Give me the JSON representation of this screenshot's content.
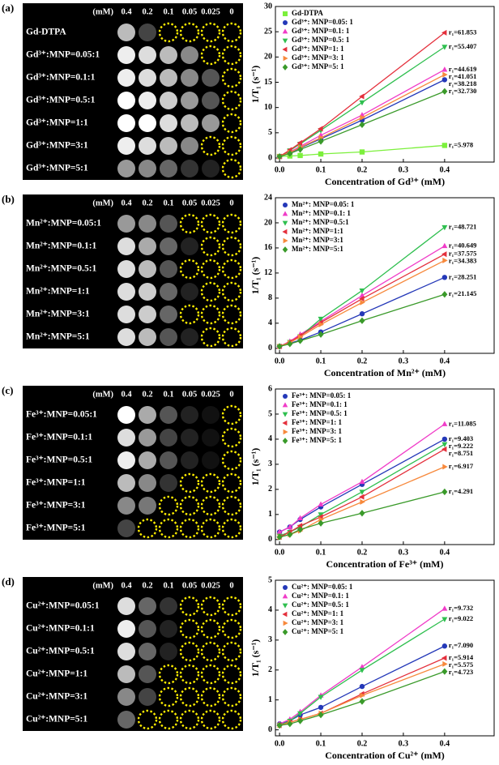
{
  "panels": [
    {
      "label": "(a)",
      "phantom": {
        "unit": "(mM)",
        "columns": [
          "0.4",
          "0.2",
          "0.1",
          "0.05",
          "0.025",
          "0"
        ],
        "rows": [
          {
            "label": "Gd-DTPA",
            "cells": [
              "#bbbbbb",
              "#444444",
              null,
              null,
              null,
              null
            ]
          },
          {
            "label": "Gd³⁺:MNP=0.05:1",
            "cells": [
              "#eeeeee",
              "#dddddd",
              "#bbbbbb",
              "#888888",
              null,
              null
            ]
          },
          {
            "label": "Gd³⁺:MNP=0.1:1",
            "cells": [
              "#eeeeee",
              "#dddddd",
              "#bbbbbb",
              "#888888",
              "#555555",
              null
            ]
          },
          {
            "label": "Gd³⁺:MNP=0.5:1",
            "cells": [
              "#ffffff",
              "#eeeeee",
              "#cccccc",
              "#999999",
              "#555555",
              null
            ]
          },
          {
            "label": "Gd³⁺:MNP=1:1",
            "cells": [
              "#ffffff",
              "#ffffff",
              "#dddddd",
              "#bbbbbb",
              "#999999",
              null
            ]
          },
          {
            "label": "Gd³⁺:MNP=3:1",
            "cells": [
              "#eeeeee",
              "#dddddd",
              "#bbbbbb",
              "#888888",
              null,
              null
            ]
          },
          {
            "label": "Gd³⁺:MNP=5:1",
            "cells": [
              "#999999",
              "#888888",
              "#666666",
              "#333333",
              "#222222",
              null
            ]
          }
        ]
      }
    },
    {
      "label": "(b)",
      "phantom": {
        "unit": "(mM)",
        "columns": [
          "0.4",
          "0.2",
          "0.1",
          "0.05",
          "0.025",
          "0"
        ],
        "rows": [
          {
            "label": "Mn²⁺:MNP=0.05:1",
            "cells": [
              "#999999",
              "#888888",
              "#555555",
              null,
              null,
              null
            ]
          },
          {
            "label": "Mn²⁺:MNP=0.1:1",
            "cells": [
              "#dddddd",
              "#aaaaaa",
              "#666666",
              "#222222",
              null,
              null
            ]
          },
          {
            "label": "Mn²⁺:MNP=0.5:1",
            "cells": [
              "#dddddd",
              "#bbbbbb",
              "#555555",
              null,
              null,
              null
            ]
          },
          {
            "label": "Mn²⁺:MNP=1:1",
            "cells": [
              "#dddddd",
              "#cccccc",
              "#666666",
              "#222222",
              null,
              null
            ]
          },
          {
            "label": "Mn²⁺:MNP=3:1",
            "cells": [
              "#dddddd",
              "#cccccc",
              "#666666",
              null,
              null,
              null
            ]
          },
          {
            "label": "Mn²⁺:MNP=5:1",
            "cells": [
              "#dddddd",
              "#bbbbbb",
              "#555555",
              "#222222",
              null,
              null
            ]
          }
        ]
      }
    },
    {
      "label": "(c)",
      "phantom": {
        "unit": "(mM)",
        "columns": [
          "0.4",
          "0.2",
          "0.1",
          "0.05",
          "0.025",
          "0"
        ],
        "rows": [
          {
            "label": "Fe³⁺:MNP=0.05:1",
            "cells": [
              "#ffffff",
              "#aaaaaa",
              "#555555",
              "#222222",
              "#111111",
              null
            ]
          },
          {
            "label": "Fe³⁺:MNP=0.1:1",
            "cells": [
              "#dddddd",
              "#999999",
              "#444444",
              "#222222",
              "#111111",
              null
            ]
          },
          {
            "label": "Fe³⁺:MNP=0.5:1",
            "cells": [
              "#eeeeee",
              "#aaaaaa",
              "#555555",
              "#222222",
              "#111111",
              null
            ]
          },
          {
            "label": "Fe³⁺:MNP=1:1",
            "cells": [
              "#bbbbbb",
              "#888888",
              "#333333",
              null,
              null,
              null
            ]
          },
          {
            "label": "Fe³⁺:MNP=3:1",
            "cells": [
              "#888888",
              "#777777",
              null,
              null,
              null,
              null
            ]
          },
          {
            "label": "Fe³⁺:MNP=5:1",
            "cells": [
              "#444444",
              null,
              null,
              null,
              null,
              null
            ]
          }
        ]
      }
    },
    {
      "label": "(d)",
      "phantom": {
        "unit": "(mM)",
        "columns": [
          "0.4",
          "0.2",
          "0.1",
          "0.05",
          "0.025",
          "0"
        ],
        "rows": [
          {
            "label": "Cu²⁺:MNP=0.05:1",
            "cells": [
              "#dddddd",
              "#666666",
              "#333333",
              null,
              null,
              null
            ]
          },
          {
            "label": "Cu²⁺:MNP=0.1:1",
            "cells": [
              "#eeeeee",
              "#555555",
              "#222222",
              null,
              null,
              null
            ]
          },
          {
            "label": "Cu²⁺:MNP=0.5:1",
            "cells": [
              "#dddddd",
              "#666666",
              "#222222",
              null,
              null,
              null
            ]
          },
          {
            "label": "Cu²⁺:MNP=1:1",
            "cells": [
              "#bbbbbb",
              "#555555",
              null,
              null,
              null,
              null
            ]
          },
          {
            "label": "Cu²⁺:MNP=3:1",
            "cells": [
              "#888888",
              "#444444",
              null,
              null,
              null,
              null
            ]
          },
          {
            "label": "Cu²⁺:MNP=5:1",
            "cells": [
              "#666666",
              null,
              null,
              null,
              null,
              null
            ]
          }
        ]
      }
    }
  ],
  "chart_data": [
    {
      "type": "line",
      "x_label": "Concentration of Gd³⁺ (mM)",
      "y_label": "1/T₁ (s⁻¹)",
      "x": [
        0,
        0.025,
        0.05,
        0.1,
        0.2,
        0.4
      ],
      "xlim": [
        -0.01,
        0.52
      ],
      "ylim": [
        -0.8,
        30
      ],
      "xticks": [
        {
          "value": 0,
          "label": "0.0"
        },
        0.1,
        0.2,
        0.3,
        0.4
      ],
      "yticks": [
        0,
        5,
        10,
        15,
        20,
        25,
        30
      ],
      "grid": false,
      "legend": "upper left",
      "series": [
        {
          "name": "Gd-DTPA",
          "color": "#7cf03c",
          "marker": "square",
          "values": [
            0.3,
            0.4,
            0.5,
            0.8,
            1.2,
            2.5
          ],
          "annotation": "r₁=5.978"
        },
        {
          "name": "Gd³⁺: MNP=0.05: 1",
          "color": "#2438b8",
          "marker": "circle",
          "values": [
            0.3,
            1.0,
            2.0,
            3.8,
            7.5,
            15.5
          ],
          "annotation": "r₁=38.218"
        },
        {
          "name": "Gd³⁺: MNP=0.1: 1",
          "color": "#f03cc8",
          "marker": "triangle-up",
          "values": [
            0.3,
            1.2,
            2.3,
            4.5,
            8.5,
            17.5
          ],
          "annotation": "r₁=44.619"
        },
        {
          "name": "Gd³⁺: MNP=0.5: 1",
          "color": "#2fbf4f",
          "marker": "triangle-down",
          "values": [
            0.3,
            1.5,
            2.8,
            5.5,
            11.0,
            22.0
          ],
          "annotation": "r₁=55.407"
        },
        {
          "name": "Gd³⁺: MNP=1: 1",
          "color": "#e4303c",
          "marker": "triangle-left",
          "values": [
            0.3,
            1.6,
            3.0,
            5.8,
            12.2,
            24.8
          ],
          "annotation": "r₁=61.853"
        },
        {
          "name": "Gd³⁺: MNP=3: 1",
          "color": "#f7893c",
          "marker": "triangle-right",
          "values": [
            0.3,
            1.1,
            2.1,
            4.0,
            8.0,
            16.5
          ],
          "annotation": "r₁=41.051"
        },
        {
          "name": "Gd³⁺: MNP=5: 1",
          "color": "#3a9a2a",
          "marker": "diamond",
          "values": [
            0.3,
            0.9,
            1.7,
            3.3,
            6.6,
            13.2
          ],
          "annotation": "r₁=32.730"
        }
      ]
    },
    {
      "type": "line",
      "x_label": "Concentration of Mn²⁺ (mM)",
      "y_label": "1/T₁ (s⁻¹)",
      "x": [
        0,
        0.025,
        0.05,
        0.1,
        0.2,
        0.4
      ],
      "xlim": [
        -0.01,
        0.52
      ],
      "ylim": [
        -0.8,
        24
      ],
      "xticks": [
        {
          "value": 0,
          "label": "0.0"
        },
        0.1,
        0.2,
        0.3,
        0.4
      ],
      "yticks": [
        0,
        4,
        8,
        12,
        16,
        20,
        24
      ],
      "grid": false,
      "legend": "upper left",
      "series": [
        {
          "name": "Mn²⁺: MNP=0.05: 1",
          "color": "#2438b8",
          "marker": "circle",
          "values": [
            0.3,
            0.8,
            1.3,
            2.6,
            5.5,
            11.3
          ],
          "annotation": "r₁=28.251"
        },
        {
          "name": "Mn²⁺: MNP=0.1: 1",
          "color": "#f03cc8",
          "marker": "triangle-up",
          "values": [
            0.3,
            1.1,
            2.2,
            4.3,
            8.4,
            16.3
          ],
          "annotation": "r₁=40.649"
        },
        {
          "name": "Mn²⁺: MNP=0.5:1",
          "color": "#2fbf4f",
          "marker": "triangle-down",
          "values": [
            0.3,
            1.0,
            1.9,
            4.7,
            9.2,
            19.3
          ],
          "annotation": "r₁=48.721"
        },
        {
          "name": "Mn²⁺: MNP=1:1",
          "color": "#e4303c",
          "marker": "triangle-left",
          "values": [
            0.3,
            1.0,
            2.0,
            4.1,
            7.9,
            15.0
          ],
          "annotation": "r₁=37.575"
        },
        {
          "name": "Mn²⁺: MNP=3:1",
          "color": "#f7893c",
          "marker": "triangle-right",
          "values": [
            0.3,
            0.9,
            1.8,
            3.8,
            7.3,
            14.0
          ],
          "annotation": "r₁=34.383"
        },
        {
          "name": "Mn²⁺: MNP=5:1",
          "color": "#3a9a2a",
          "marker": "diamond",
          "values": [
            0.3,
            0.7,
            1.2,
            2.2,
            4.4,
            8.6
          ],
          "annotation": "r₁=21.145"
        }
      ]
    },
    {
      "type": "line",
      "x_label": "Concentration of Fe³⁺ (mM)",
      "y_label": "1/T₁ (s⁻¹)",
      "x": [
        0,
        0.025,
        0.05,
        0.1,
        0.2,
        0.4
      ],
      "xlim": [
        -0.01,
        0.52
      ],
      "ylim": [
        -0.2,
        6
      ],
      "xticks": [
        {
          "value": 0,
          "label": "0.0"
        },
        0.1,
        0.2,
        0.3,
        0.4
      ],
      "yticks": [
        0,
        1,
        2,
        3,
        4,
        5,
        6
      ],
      "grid": false,
      "legend": "upper left",
      "series": [
        {
          "name": "Fe³⁺: MNP=0.05: 1",
          "color": "#2438b8",
          "marker": "circle",
          "values": [
            0.3,
            0.5,
            0.8,
            1.3,
            2.2,
            4.0
          ],
          "annotation": "r₁=9.403"
        },
        {
          "name": "Fe³⁺: MNP=0.1: 1",
          "color": "#f03cc8",
          "marker": "triangle-up",
          "values": [
            0.3,
            0.5,
            0.85,
            1.4,
            2.3,
            4.6
          ],
          "annotation": "r₁=11.085"
        },
        {
          "name": "Fe³⁺: MNP=0.5: 1",
          "color": "#2fbf4f",
          "marker": "triangle-down",
          "values": [
            0.15,
            0.3,
            0.5,
            1.0,
            1.9,
            3.8
          ],
          "annotation": "r₁=9.222"
        },
        {
          "name": "Fe³⁺: MNP=1: 1",
          "color": "#e4303c",
          "marker": "triangle-left",
          "values": [
            0.1,
            0.3,
            0.55,
            0.9,
            1.7,
            3.6
          ],
          "annotation": "r₁=8.751"
        },
        {
          "name": "Fe³⁺: MNP=3: 1",
          "color": "#f7893c",
          "marker": "triangle-right",
          "values": [
            0.1,
            0.2,
            0.35,
            0.8,
            1.5,
            2.9
          ],
          "annotation": "r₁=6.917"
        },
        {
          "name": "Fe³⁺: MNP=5: 1",
          "color": "#3a9a2a",
          "marker": "diamond",
          "values": [
            0.1,
            0.2,
            0.4,
            0.65,
            1.05,
            1.9
          ],
          "annotation": "r₁=4.291"
        }
      ]
    },
    {
      "type": "line",
      "x_label": "Concentration of Cu²⁺ (mM)",
      "y_label": "1/T₁ (s⁻¹)",
      "x": [
        0,
        0.025,
        0.05,
        0.1,
        0.2,
        0.4
      ],
      "xlim": [
        -0.01,
        0.52
      ],
      "ylim": [
        -0.2,
        5
      ],
      "xticks": [
        {
          "value": 0,
          "label": "0.0"
        },
        0.1,
        0.2,
        0.3,
        0.4
      ],
      "yticks": [
        0,
        1,
        2,
        3,
        4,
        5
      ],
      "grid": false,
      "legend": "upper left",
      "series": [
        {
          "name": "Cu²⁺: MNP=0.05: 1",
          "color": "#2438b8",
          "marker": "circle",
          "values": [
            0.2,
            0.3,
            0.5,
            0.75,
            1.45,
            2.8
          ],
          "annotation": "r₁=7.090"
        },
        {
          "name": "Cu²⁺: MNP=0.1: 1",
          "color": "#f03cc8",
          "marker": "triangle-up",
          "values": [
            0.2,
            0.35,
            0.6,
            1.15,
            2.1,
            4.05
          ],
          "annotation": "r₁=9.732"
        },
        {
          "name": "Cu²⁺: MNP=0.5: 1",
          "color": "#2fbf4f",
          "marker": "triangle-down",
          "values": [
            0.15,
            0.3,
            0.55,
            1.1,
            2.0,
            3.7
          ],
          "annotation": "r₁=9.022"
        },
        {
          "name": "Cu²⁺: MNP=1: 1",
          "color": "#e4303c",
          "marker": "triangle-left",
          "values": [
            0.15,
            0.25,
            0.35,
            0.55,
            1.2,
            2.4
          ],
          "annotation": "r₁=5.914"
        },
        {
          "name": "Cu²⁺: MNP=3: 1",
          "color": "#f7893c",
          "marker": "triangle-right",
          "values": [
            0.15,
            0.25,
            0.35,
            0.55,
            1.15,
            2.2
          ],
          "annotation": "r₁=5.575"
        },
        {
          "name": "Cu²⁺: MNP=5: 1",
          "color": "#3a9a2a",
          "marker": "diamond",
          "values": [
            0.15,
            0.2,
            0.3,
            0.5,
            0.95,
            1.95
          ],
          "annotation": "r₁=4.723"
        }
      ]
    }
  ]
}
